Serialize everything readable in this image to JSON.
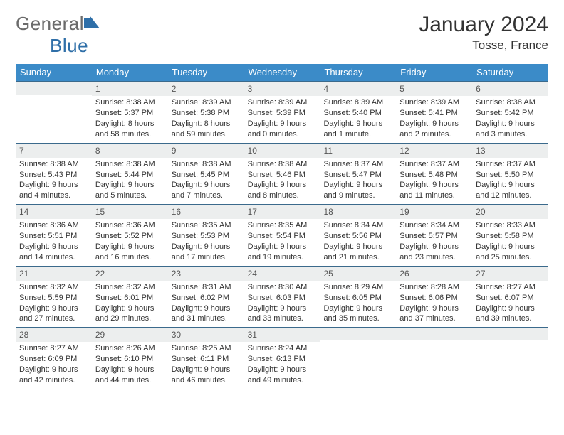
{
  "brand": {
    "part1": "General",
    "part2": "Blue"
  },
  "title": "January 2024",
  "location": "Tosse, France",
  "colors": {
    "header_bg": "#3b8bc8",
    "header_text": "#ffffff",
    "week_divider": "#3b6a8c",
    "daynum_bg": "#eceeee",
    "body_text": "#333333",
    "logo_gray": "#6b6b6b",
    "logo_blue": "#2f6fa8",
    "page_bg": "#ffffff"
  },
  "typography": {
    "title_fontsize": 30,
    "location_fontsize": 17,
    "dow_fontsize": 13,
    "body_fontsize": 11
  },
  "dow": [
    "Sunday",
    "Monday",
    "Tuesday",
    "Wednesday",
    "Thursday",
    "Friday",
    "Saturday"
  ],
  "weeks": [
    [
      {
        "n": "",
        "lines": []
      },
      {
        "n": "1",
        "lines": [
          "Sunrise: 8:38 AM",
          "Sunset: 5:37 PM",
          "Daylight: 8 hours",
          "and 58 minutes."
        ]
      },
      {
        "n": "2",
        "lines": [
          "Sunrise: 8:39 AM",
          "Sunset: 5:38 PM",
          "Daylight: 8 hours",
          "and 59 minutes."
        ]
      },
      {
        "n": "3",
        "lines": [
          "Sunrise: 8:39 AM",
          "Sunset: 5:39 PM",
          "Daylight: 9 hours",
          "and 0 minutes."
        ]
      },
      {
        "n": "4",
        "lines": [
          "Sunrise: 8:39 AM",
          "Sunset: 5:40 PM",
          "Daylight: 9 hours",
          "and 1 minute."
        ]
      },
      {
        "n": "5",
        "lines": [
          "Sunrise: 8:39 AM",
          "Sunset: 5:41 PM",
          "Daylight: 9 hours",
          "and 2 minutes."
        ]
      },
      {
        "n": "6",
        "lines": [
          "Sunrise: 8:38 AM",
          "Sunset: 5:42 PM",
          "Daylight: 9 hours",
          "and 3 minutes."
        ]
      }
    ],
    [
      {
        "n": "7",
        "lines": [
          "Sunrise: 8:38 AM",
          "Sunset: 5:43 PM",
          "Daylight: 9 hours",
          "and 4 minutes."
        ]
      },
      {
        "n": "8",
        "lines": [
          "Sunrise: 8:38 AM",
          "Sunset: 5:44 PM",
          "Daylight: 9 hours",
          "and 5 minutes."
        ]
      },
      {
        "n": "9",
        "lines": [
          "Sunrise: 8:38 AM",
          "Sunset: 5:45 PM",
          "Daylight: 9 hours",
          "and 7 minutes."
        ]
      },
      {
        "n": "10",
        "lines": [
          "Sunrise: 8:38 AM",
          "Sunset: 5:46 PM",
          "Daylight: 9 hours",
          "and 8 minutes."
        ]
      },
      {
        "n": "11",
        "lines": [
          "Sunrise: 8:37 AM",
          "Sunset: 5:47 PM",
          "Daylight: 9 hours",
          "and 9 minutes."
        ]
      },
      {
        "n": "12",
        "lines": [
          "Sunrise: 8:37 AM",
          "Sunset: 5:48 PM",
          "Daylight: 9 hours",
          "and 11 minutes."
        ]
      },
      {
        "n": "13",
        "lines": [
          "Sunrise: 8:37 AM",
          "Sunset: 5:50 PM",
          "Daylight: 9 hours",
          "and 12 minutes."
        ]
      }
    ],
    [
      {
        "n": "14",
        "lines": [
          "Sunrise: 8:36 AM",
          "Sunset: 5:51 PM",
          "Daylight: 9 hours",
          "and 14 minutes."
        ]
      },
      {
        "n": "15",
        "lines": [
          "Sunrise: 8:36 AM",
          "Sunset: 5:52 PM",
          "Daylight: 9 hours",
          "and 16 minutes."
        ]
      },
      {
        "n": "16",
        "lines": [
          "Sunrise: 8:35 AM",
          "Sunset: 5:53 PM",
          "Daylight: 9 hours",
          "and 17 minutes."
        ]
      },
      {
        "n": "17",
        "lines": [
          "Sunrise: 8:35 AM",
          "Sunset: 5:54 PM",
          "Daylight: 9 hours",
          "and 19 minutes."
        ]
      },
      {
        "n": "18",
        "lines": [
          "Sunrise: 8:34 AM",
          "Sunset: 5:56 PM",
          "Daylight: 9 hours",
          "and 21 minutes."
        ]
      },
      {
        "n": "19",
        "lines": [
          "Sunrise: 8:34 AM",
          "Sunset: 5:57 PM",
          "Daylight: 9 hours",
          "and 23 minutes."
        ]
      },
      {
        "n": "20",
        "lines": [
          "Sunrise: 8:33 AM",
          "Sunset: 5:58 PM",
          "Daylight: 9 hours",
          "and 25 minutes."
        ]
      }
    ],
    [
      {
        "n": "21",
        "lines": [
          "Sunrise: 8:32 AM",
          "Sunset: 5:59 PM",
          "Daylight: 9 hours",
          "and 27 minutes."
        ]
      },
      {
        "n": "22",
        "lines": [
          "Sunrise: 8:32 AM",
          "Sunset: 6:01 PM",
          "Daylight: 9 hours",
          "and 29 minutes."
        ]
      },
      {
        "n": "23",
        "lines": [
          "Sunrise: 8:31 AM",
          "Sunset: 6:02 PM",
          "Daylight: 9 hours",
          "and 31 minutes."
        ]
      },
      {
        "n": "24",
        "lines": [
          "Sunrise: 8:30 AM",
          "Sunset: 6:03 PM",
          "Daylight: 9 hours",
          "and 33 minutes."
        ]
      },
      {
        "n": "25",
        "lines": [
          "Sunrise: 8:29 AM",
          "Sunset: 6:05 PM",
          "Daylight: 9 hours",
          "and 35 minutes."
        ]
      },
      {
        "n": "26",
        "lines": [
          "Sunrise: 8:28 AM",
          "Sunset: 6:06 PM",
          "Daylight: 9 hours",
          "and 37 minutes."
        ]
      },
      {
        "n": "27",
        "lines": [
          "Sunrise: 8:27 AM",
          "Sunset: 6:07 PM",
          "Daylight: 9 hours",
          "and 39 minutes."
        ]
      }
    ],
    [
      {
        "n": "28",
        "lines": [
          "Sunrise: 8:27 AM",
          "Sunset: 6:09 PM",
          "Daylight: 9 hours",
          "and 42 minutes."
        ]
      },
      {
        "n": "29",
        "lines": [
          "Sunrise: 8:26 AM",
          "Sunset: 6:10 PM",
          "Daylight: 9 hours",
          "and 44 minutes."
        ]
      },
      {
        "n": "30",
        "lines": [
          "Sunrise: 8:25 AM",
          "Sunset: 6:11 PM",
          "Daylight: 9 hours",
          "and 46 minutes."
        ]
      },
      {
        "n": "31",
        "lines": [
          "Sunrise: 8:24 AM",
          "Sunset: 6:13 PM",
          "Daylight: 9 hours",
          "and 49 minutes."
        ]
      },
      {
        "n": "",
        "lines": []
      },
      {
        "n": "",
        "lines": []
      },
      {
        "n": "",
        "lines": []
      }
    ]
  ]
}
